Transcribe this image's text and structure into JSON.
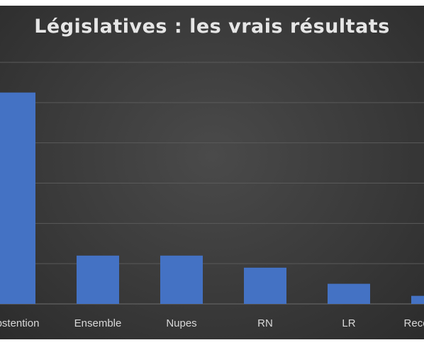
{
  "chart_data": {
    "type": "bar",
    "title": "Législatives : les vrais résultats",
    "categories": [
      "Abstention",
      "Ensemble",
      "Nupes",
      "RN",
      "LR",
      "Reconquête"
    ],
    "values": [
      52.5,
      12,
      12,
      9,
      5,
      2
    ],
    "ylim": [
      0,
      60
    ],
    "grid": true,
    "legend": "none",
    "colors": {
      "bar": "#4472c4",
      "background": "#3c3c3c",
      "grid": "#5a5a5a",
      "text": "#d9d9d9"
    }
  }
}
